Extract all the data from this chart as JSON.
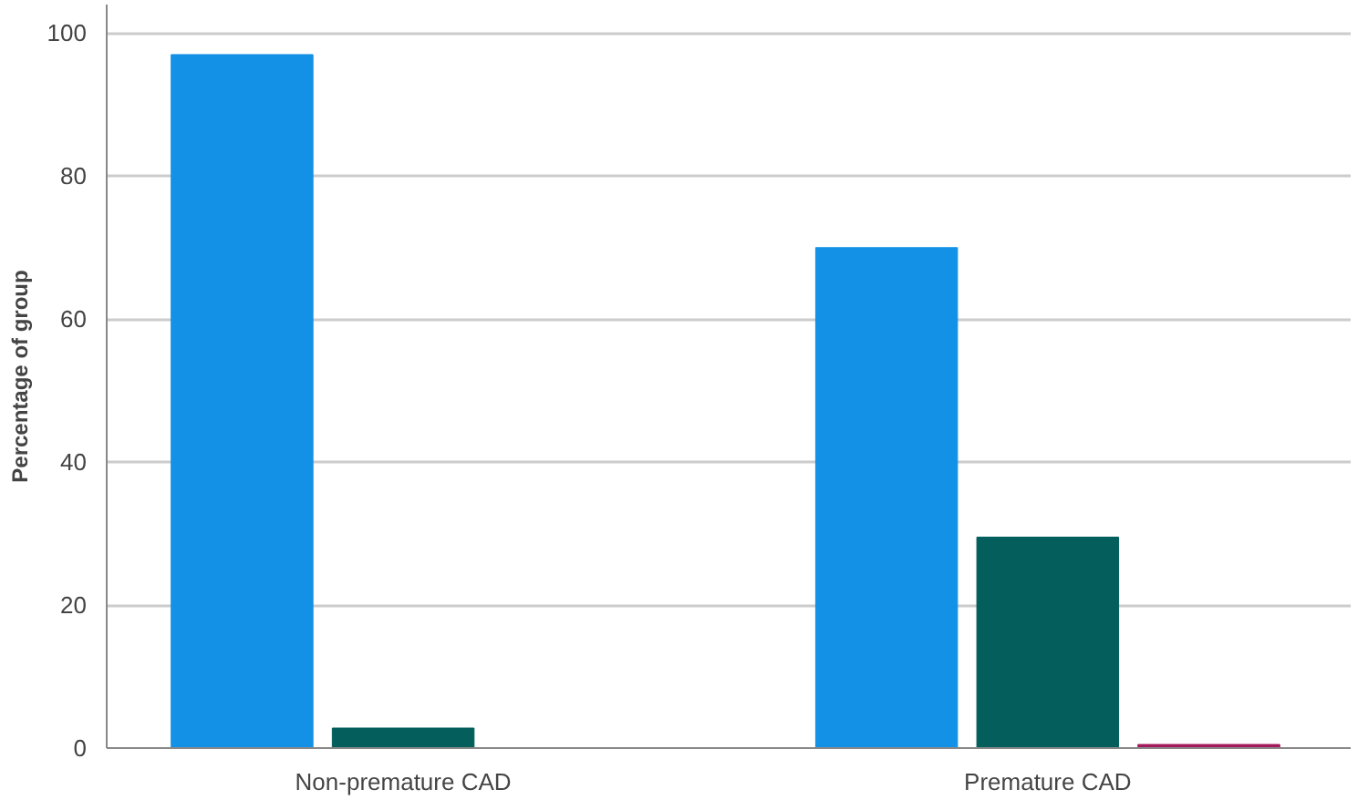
{
  "chart_data": {
    "type": "bar",
    "ylabel": "Percentage of group",
    "categories": [
      "Non-premature CAD",
      "Premature CAD"
    ],
    "series": [
      {
        "color": "#1391e6",
        "values": [
          97,
          70
        ]
      },
      {
        "color": "#035e5c",
        "values": [
          2.8,
          29.5
        ]
      },
      {
        "color": "#a3195b",
        "values": [
          0,
          0.5
        ]
      }
    ],
    "ylim": [
      0,
      104
    ],
    "yticks": [
      0,
      20,
      40,
      60,
      80,
      100
    ],
    "grid": "y"
  }
}
